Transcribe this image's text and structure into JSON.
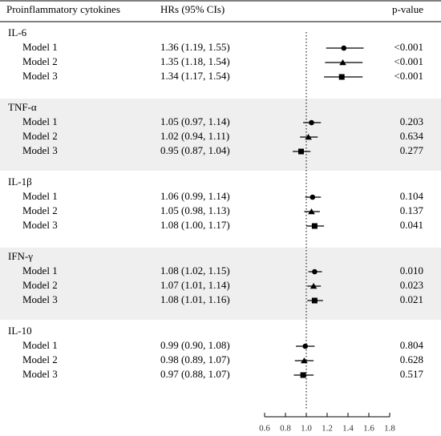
{
  "chart_data": {
    "type": "forest",
    "columns": [
      "Proinflammatory cytokines",
      "HRs (95% CIs)",
      "p-value"
    ],
    "markers": [
      "circle",
      "triangle",
      "square"
    ],
    "color": "#000000",
    "shade_color": "#efefef",
    "reference": 1,
    "xlim": [
      0.6,
      1.8
    ],
    "xticks": [
      0.6,
      0.8,
      {
        "value": 1,
        "label": "1.0"
      },
      1.2,
      1.4,
      1.6,
      1.8
    ],
    "groups": [
      {
        "name": "IL-6",
        "shaded": false,
        "rows": [
          {
            "model": "Model 1",
            "label": "1.36 (1.19, 1.55)",
            "hr": 1.36,
            "lower": 1.19,
            "upper": 1.55,
            "p": "<0.001"
          },
          {
            "model": "Model 2",
            "label": "1.35 (1.18, 1.54)",
            "hr": 1.35,
            "lower": 1.18,
            "upper": 1.54,
            "p": "<0.001"
          },
          {
            "model": "Model 3",
            "label": "1.34 (1.17, 1.54)",
            "hr": 1.34,
            "lower": 1.17,
            "upper": 1.54,
            "p": "<0.001"
          }
        ]
      },
      {
        "name": "TNF-α",
        "shaded": true,
        "rows": [
          {
            "model": "Model 1",
            "label": "1.05 (0.97, 1.14)",
            "hr": 1.05,
            "lower": 0.97,
            "upper": 1.14,
            "p": "0.203"
          },
          {
            "model": "Model 2",
            "label": "1.02 (0.94, 1.11)",
            "hr": 1.02,
            "lower": 0.94,
            "upper": 1.11,
            "p": "0.634"
          },
          {
            "model": "Model 3",
            "label": "0.95 (0.87, 1.04)",
            "hr": 0.95,
            "lower": 0.87,
            "upper": 1.04,
            "p": "0.277"
          }
        ]
      },
      {
        "name": "IL-1β",
        "shaded": false,
        "rows": [
          {
            "model": "Model 1",
            "label": "1.06 (0.99, 1.14)",
            "hr": 1.06,
            "lower": 0.99,
            "upper": 1.14,
            "p": "0.104"
          },
          {
            "model": "Model 2",
            "label": "1.05 (0.98, 1.13)",
            "hr": 1.05,
            "lower": 0.98,
            "upper": 1.13,
            "p": "0.137"
          },
          {
            "model": "Model 3",
            "label": "1.08 (1.00, 1.17)",
            "hr": 1.08,
            "lower": 1.0,
            "upper": 1.17,
            "p": "0.041"
          }
        ]
      },
      {
        "name": "IFN-γ",
        "shaded": true,
        "rows": [
          {
            "model": "Model 1",
            "label": "1.08 (1.02, 1.15)",
            "hr": 1.08,
            "lower": 1.02,
            "upper": 1.15,
            "p": "0.010"
          },
          {
            "model": "Model 2",
            "label": "1.07 (1.01, 1.14)",
            "hr": 1.07,
            "lower": 1.01,
            "upper": 1.14,
            "p": "0.023"
          },
          {
            "model": "Model 3",
            "label": "1.08 (1.01, 1.16)",
            "hr": 1.08,
            "lower": 1.01,
            "upper": 1.16,
            "p": "0.021"
          }
        ]
      },
      {
        "name": "IL-10",
        "shaded": false,
        "rows": [
          {
            "model": "Model 1",
            "label": "0.99 (0.90, 1.08)",
            "hr": 0.99,
            "lower": 0.9,
            "upper": 1.08,
            "p": "0.804"
          },
          {
            "model": "Model 2",
            "label": "0.98 (0.89, 1.07)",
            "hr": 0.98,
            "lower": 0.89,
            "upper": 1.07,
            "p": "0.628"
          },
          {
            "model": "Model 3",
            "label": "0.97 (0.88, 1.07)",
            "hr": 0.97,
            "lower": 0.88,
            "upper": 1.07,
            "p": "0.517"
          }
        ]
      }
    ]
  }
}
